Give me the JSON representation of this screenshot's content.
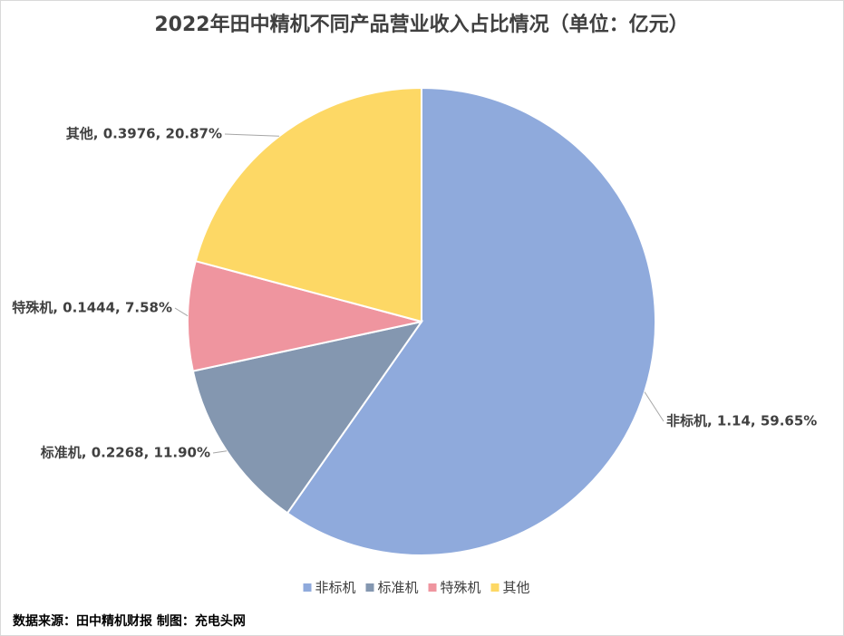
{
  "chart_data": {
    "type": "pie",
    "title": "2022年田中精机不同产品营业收入占比情况（单位：亿元）",
    "categories": [
      "非标机",
      "标准机",
      "特殊机",
      "其他"
    ],
    "values": [
      1.14,
      0.2268,
      0.1444,
      0.3976
    ],
    "value_labels": [
      "非标机, 1.14, 59.65%",
      "标准机, 0.2268, 11.90%",
      "特殊机, 0.1444, 7.58%",
      "其他, 0.3976, 20.87%"
    ],
    "colors": [
      "#8faadc",
      "#8497b0",
      "#ef959f",
      "#fdd865"
    ],
    "legend": "bottom",
    "source": "数据来源：田中精机财报  制图：充电头网"
  }
}
